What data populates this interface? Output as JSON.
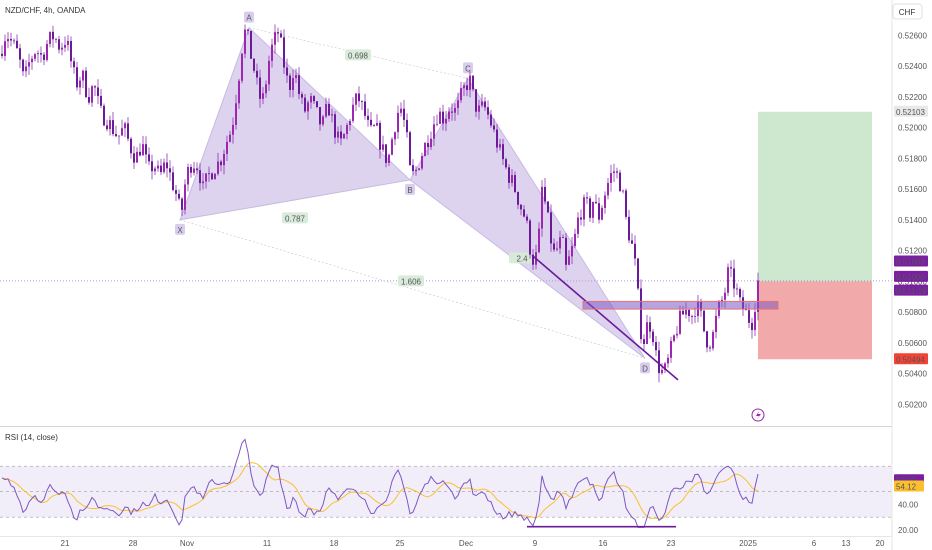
{
  "chart_data": {
    "type": "candlestick",
    "symbol_label": "NZD/CHF, 4h, OANDA",
    "currency_label": "CHF",
    "x_tick_labels": [
      "21",
      "28",
      "Nov",
      "11",
      "18",
      "25",
      "Dec",
      "9",
      "16",
      "23",
      "2025",
      "6",
      "13",
      "20"
    ],
    "y_range": [
      0.5006,
      0.5283
    ],
    "y_ticks": [
      0.526,
      0.524,
      0.522,
      0.52,
      0.518,
      0.516,
      0.514,
      0.512,
      0.51,
      0.508,
      0.506,
      0.504,
      0.502
    ],
    "y_tick_labels": [
      "0.52600",
      "0.52400",
      "0.52200",
      "0.52000",
      "0.51800",
      "0.51600",
      "0.51400",
      "0.51200",
      "0.51000",
      "0.50800",
      "0.50600",
      "0.50400",
      "0.50200"
    ],
    "price_badges": [
      {
        "label": "0.52103",
        "value": 0.52103,
        "kind": "target"
      },
      {
        "label": "0.51003",
        "value": 0.51003,
        "kind": "current"
      },
      {
        "label": "0.51000",
        "value": 0.51,
        "kind": "current"
      },
      {
        "label": "03:11:19",
        "value": 0.5094,
        "kind": "countdown"
      },
      {
        "label": "0.50494",
        "value": 0.50494,
        "kind": "stop"
      }
    ],
    "close_path": [
      [
        0,
        0.5248
      ],
      [
        6,
        0.5262
      ],
      [
        12,
        0.5255
      ],
      [
        18,
        0.5248
      ],
      [
        24,
        0.523
      ],
      [
        30,
        0.5244
      ],
      [
        36,
        0.5251
      ],
      [
        42,
        0.5246
      ],
      [
        48,
        0.5256
      ],
      [
        54,
        0.526
      ],
      [
        60,
        0.5252
      ],
      [
        66,
        0.5258
      ],
      [
        72,
        0.524
      ],
      [
        76,
        0.5228
      ],
      [
        82,
        0.5235
      ],
      [
        88,
        0.522
      ],
      [
        94,
        0.5228
      ],
      [
        100,
        0.521
      ],
      [
        106,
        0.5206
      ],
      [
        112,
        0.52
      ],
      [
        118,
        0.5194
      ],
      [
        124,
        0.52
      ],
      [
        130,
        0.5188
      ],
      [
        136,
        0.518
      ],
      [
        142,
        0.519
      ],
      [
        148,
        0.5172
      ],
      [
        154,
        0.5176
      ],
      [
        160,
        0.5168
      ],
      [
        166,
        0.5178
      ],
      [
        172,
        0.5165
      ],
      [
        177,
        0.5155
      ],
      [
        181,
        0.5142
      ],
      [
        186,
        0.5168
      ],
      [
        192,
        0.5178
      ],
      [
        198,
        0.5175
      ],
      [
        203,
        0.516
      ],
      [
        208,
        0.5168
      ],
      [
        214,
        0.5174
      ],
      [
        220,
        0.5178
      ],
      [
        226,
        0.519
      ],
      [
        232,
        0.52
      ],
      [
        237,
        0.5225
      ],
      [
        240,
        0.524
      ],
      [
        243,
        0.5258
      ],
      [
        246,
        0.5264
      ],
      [
        250,
        0.525
      ],
      [
        254,
        0.5238
      ],
      [
        258,
        0.5224
      ],
      [
        262,
        0.5215
      ],
      [
        266,
        0.523
      ],
      [
        270,
        0.5248
      ],
      [
        274,
        0.5256
      ],
      [
        278,
        0.5262
      ],
      [
        282,
        0.525
      ],
      [
        286,
        0.5232
      ],
      [
        290,
        0.5228
      ],
      [
        294,
        0.524
      ],
      [
        298,
        0.5225
      ],
      [
        304,
        0.521
      ],
      [
        310,
        0.5218
      ],
      [
        316,
        0.521
      ],
      [
        322,
        0.52
      ],
      [
        328,
        0.5215
      ],
      [
        334,
        0.52
      ],
      [
        340,
        0.5188
      ],
      [
        346,
        0.5198
      ],
      [
        352,
        0.5212
      ],
      [
        358,
        0.522
      ],
      [
        364,
        0.521
      ],
      [
        370,
        0.5196
      ],
      [
        376,
        0.52
      ],
      [
        382,
        0.5186
      ],
      [
        388,
        0.5178
      ],
      [
        394,
        0.52
      ],
      [
        400,
        0.5215
      ],
      [
        406,
        0.5198
      ],
      [
        410,
        0.5172
      ],
      [
        414,
        0.5168
      ],
      [
        420,
        0.518
      ],
      [
        426,
        0.519
      ],
      [
        432,
        0.52
      ],
      [
        438,
        0.521
      ],
      [
        444,
        0.5206
      ],
      [
        450,
        0.5214
      ],
      [
        456,
        0.521
      ],
      [
        462,
        0.5222
      ],
      [
        466,
        0.5228
      ],
      [
        470,
        0.523
      ],
      [
        474,
        0.5218
      ],
      [
        478,
        0.521
      ],
      [
        484,
        0.5214
      ],
      [
        490,
        0.5205
      ],
      [
        496,
        0.5192
      ],
      [
        502,
        0.518
      ],
      [
        508,
        0.517
      ],
      [
        514,
        0.5162
      ],
      [
        520,
        0.515
      ],
      [
        526,
        0.514
      ],
      [
        530,
        0.5122
      ],
      [
        534,
        0.5112
      ],
      [
        538,
        0.512
      ],
      [
        542,
        0.516
      ],
      [
        546,
        0.5148
      ],
      [
        550,
        0.513
      ],
      [
        554,
        0.5118
      ],
      [
        558,
        0.5122
      ],
      [
        562,
        0.5128
      ],
      [
        566,
        0.5108
      ],
      [
        570,
        0.5116
      ],
      [
        574,
        0.5125
      ],
      [
        578,
        0.514
      ],
      [
        582,
        0.5148
      ],
      [
        586,
        0.515
      ],
      [
        590,
        0.5145
      ],
      [
        594,
        0.5155
      ],
      [
        598,
        0.514
      ],
      [
        602,
        0.515
      ],
      [
        606,
        0.516
      ],
      [
        610,
        0.5168
      ],
      [
        614,
        0.5172
      ],
      [
        618,
        0.5168
      ],
      [
        622,
        0.516
      ],
      [
        626,
        0.514
      ],
      [
        630,
        0.5128
      ],
      [
        634,
        0.5118
      ],
      [
        638,
        0.509
      ],
      [
        640,
        0.507
      ],
      [
        644,
        0.5062
      ],
      [
        648,
        0.5074
      ],
      [
        652,
        0.507
      ],
      [
        656,
        0.5052
      ],
      [
        660,
        0.5042
      ],
      [
        664,
        0.504
      ],
      [
        668,
        0.5048
      ],
      [
        672,
        0.5058
      ],
      [
        676,
        0.5068
      ],
      [
        680,
        0.5075
      ],
      [
        684,
        0.508
      ],
      [
        688,
        0.5082
      ],
      [
        692,
        0.5078
      ],
      [
        696,
        0.5085
      ],
      [
        700,
        0.508
      ],
      [
        704,
        0.5068
      ],
      [
        708,
        0.506
      ],
      [
        712,
        0.5062
      ],
      [
        716,
        0.5075
      ],
      [
        720,
        0.5085
      ],
      [
        724,
        0.509
      ],
      [
        728,
        0.5105
      ],
      [
        732,
        0.5102
      ],
      [
        736,
        0.5095
      ],
      [
        740,
        0.5085
      ],
      [
        744,
        0.5082
      ],
      [
        748,
        0.5076
      ],
      [
        752,
        0.5074
      ],
      [
        756,
        0.509
      ],
      [
        758,
        0.51
      ]
    ],
    "harmonic_pattern": {
      "points": [
        {
          "label": "X",
          "x": 180,
          "value": 0.514
        },
        {
          "label": "A",
          "x": 249,
          "value": 0.5265
        },
        {
          "label": "B",
          "x": 410,
          "value": 0.5166
        },
        {
          "label": "C",
          "x": 468,
          "value": 0.5232
        },
        {
          "label": "D",
          "x": 645,
          "value": 0.505
        }
      ],
      "ratios": [
        {
          "label": "0.698",
          "x": 358,
          "value": 0.5247
        },
        {
          "label": "0.787",
          "x": 295,
          "value": 0.5141
        },
        {
          "label": "1.606",
          "x": 411,
          "value": 0.51
        },
        {
          "label": "2.4",
          "x": 522,
          "value": 0.5115
        }
      ]
    },
    "position": {
      "entry": 0.51,
      "target": 0.52103,
      "stop": 0.50494,
      "x_start": 758,
      "x_end": 872
    },
    "trendline": {
      "x1": 532,
      "y1": 0.5117,
      "x2": 678,
      "y2": 0.5036
    },
    "zone": {
      "x1": 583,
      "x2": 778,
      "y1": 0.5087,
      "y2": 0.5082
    },
    "rsi": {
      "label": "RSI (14, close)",
      "badges": [
        "59.02",
        "54.12"
      ],
      "ticks": [
        "40.00",
        "20.00"
      ],
      "range": [
        16,
        100
      ],
      "upper_band": 70,
      "mid": 50,
      "lower_band": 30,
      "trendline": {
        "x1": 527,
        "y1": 22.5,
        "x2": 676,
        "y2": 22.5
      }
    }
  }
}
